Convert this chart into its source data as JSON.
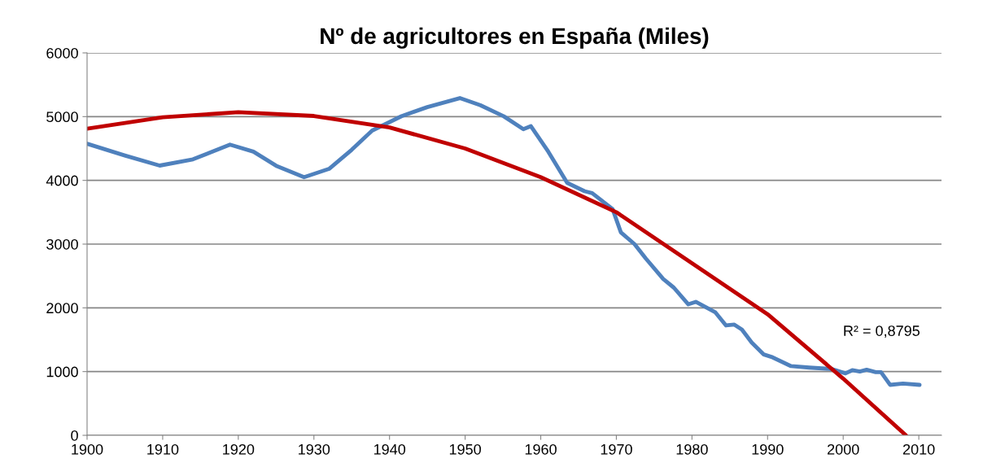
{
  "chart_data": {
    "type": "line",
    "title": "Nº de agricultores en España (Miles)",
    "series": [
      {
        "color": "#4f81bd",
        "x": [
          1900,
          1905,
          1909.6,
          1914,
          1918.9,
          1922,
          1925,
          1928.7,
          1932,
          1935,
          1937.7,
          1941.6,
          1945,
          1949.3,
          1952,
          1955.1,
          1957.7,
          1958.7,
          1961,
          1963.5,
          1965.8,
          1966.8,
          1969.5,
          1970.6,
          1972.4,
          1973.9,
          1976.2,
          1977.6,
          1979.5,
          1980.5,
          1983.1,
          1984.5,
          1985.6,
          1986.6,
          1987.9,
          1989.5,
          1990.5,
          1993.1,
          1995.5,
          1998.5,
          2000.3,
          2001.2,
          2002.2,
          2003.1,
          2004.3,
          2005,
          2006.2,
          2007.9,
          2010.1
        ],
        "values": [
          4575,
          4390,
          4232,
          4330,
          4561,
          4450,
          4230,
          4050,
          4180,
          4480,
          4781,
          5008,
          5150,
          5291,
          5180,
          5006,
          4802,
          4850,
          4450,
          3960,
          3830,
          3800,
          3550,
          3184,
          3000,
          2773,
          2452,
          2317,
          2056,
          2094,
          1928,
          1724,
          1737,
          1660,
          1456,
          1268,
          1231,
          1086,
          1063,
          1040,
          972,
          1022,
          1000,
          1028,
          991,
          991,
          792,
          812,
          792
        ]
      },
      {
        "color": "#c00000",
        "x": [
          1900,
          1910,
          1920,
          1930,
          1940,
          1950,
          1960,
          1970,
          1980,
          1990,
          2000,
          2008.3
        ],
        "values": [
          4810,
          4990,
          5070,
          5010,
          4830,
          4500,
          4050,
          3500,
          2700,
          1900,
          890,
          0
        ]
      }
    ],
    "annotations": [
      "R² = 0,8795"
    ],
    "xlim": [
      1900,
      2013
    ],
    "xticks": [
      1900,
      1910,
      1920,
      1930,
      1940,
      1950,
      1960,
      1970,
      1980,
      1990,
      2000,
      2010
    ],
    "ylim": [
      0,
      6000
    ],
    "yticks": [
      0,
      1000,
      2000,
      3000,
      4000,
      5000,
      6000
    ],
    "grid": "y"
  }
}
